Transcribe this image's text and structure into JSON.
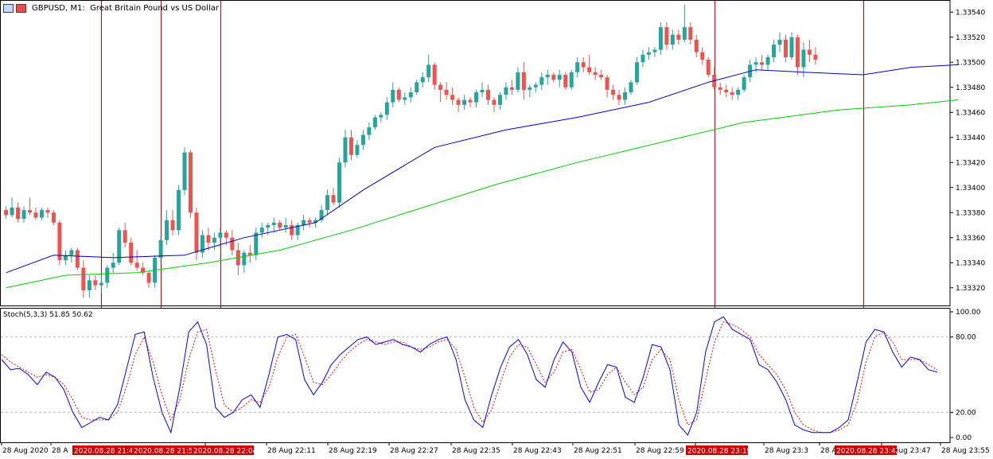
{
  "header": {
    "symbol": "GBPUSD, M1:",
    "description": "Great Britain Pound vs US Dollar",
    "icons": [
      "chart-window-icon",
      "chart-type-icon"
    ]
  },
  "stoch_label": "Stoch(5,3,3) 51.85 50.62",
  "colors": {
    "bull": "#26a69a",
    "bear": "#ef5350",
    "ma_fast": "#0000c8",
    "ma_slow": "#00d000",
    "stoch_main": "#0000ff",
    "stoch_signal": "#ff0000",
    "vline": "#d00000",
    "grid": "#bbbbbb"
  },
  "chart_data": {
    "type": "candlestick",
    "symbol": "GBPUSD",
    "timeframe": "M1",
    "price_axis": {
      "range": [
        1.333,
        1.3356
      ],
      "ticks": [
        "1.33540",
        "1.33520",
        "1.33500",
        "1.33480",
        "1.33460",
        "1.33440",
        "1.33420",
        "1.33400",
        "1.33380",
        "1.33360",
        "1.33340",
        "1.33320"
      ]
    },
    "time_labels": [
      "28 Aug 2020",
      "28 A",
      "28 Aug 22:03",
      "28 Aug 22:11",
      "28 Aug 22:19",
      "28 Aug 22:27",
      "28 Aug 22:35",
      "28 Aug 22:43",
      "28 Aug 22:51",
      "28 Aug 22:59",
      "28 Aug 23:07",
      "28 Aug 23:23",
      "28 Aug 23:3",
      "28 Aug 23:47",
      "28 Aug 23:55"
    ],
    "marker_labels": [
      "2020.08.28 21:4",
      "2020.08.28 21:5",
      "2020.08.28 22:04",
      "2020.08.28 23:19",
      "2020.08.28 23:42"
    ],
    "marker_candles": [
      16,
      26,
      36,
      119,
      144
    ],
    "candles": [
      [
        1.33382,
        1.33385,
        1.33375,
        1.33378
      ],
      [
        1.33378,
        1.33392,
        1.33376,
        1.33384
      ],
      [
        1.33384,
        1.33388,
        1.33372,
        1.33375
      ],
      [
        1.33375,
        1.33385,
        1.33372,
        1.33382
      ],
      [
        1.33382,
        1.33392,
        1.33378,
        1.3338
      ],
      [
        1.3338,
        1.33384,
        1.33374,
        1.33376
      ],
      [
        1.33376,
        1.33384,
        1.33374,
        1.33382
      ],
      [
        1.33382,
        1.33384,
        1.33376,
        1.3338
      ],
      [
        1.3338,
        1.33382,
        1.3337,
        1.33372
      ],
      [
        1.33372,
        1.33374,
        1.33338,
        1.33342
      ],
      [
        1.33342,
        1.3335,
        1.33338,
        1.33346
      ],
      [
        1.33346,
        1.33352,
        1.3334,
        1.3335
      ],
      [
        1.3335,
        1.33352,
        1.33334,
        1.33336
      ],
      [
        1.33336,
        1.33342,
        1.33312,
        1.33318
      ],
      [
        1.33318,
        1.3333,
        1.33312,
        1.33326
      ],
      [
        1.33326,
        1.3333,
        1.33318,
        1.33322
      ],
      [
        1.33322,
        1.3333,
        1.33316,
        1.33324
      ],
      [
        1.33324,
        1.33338,
        1.3332,
        1.33336
      ],
      [
        1.33336,
        1.33348,
        1.33332,
        1.3334
      ],
      [
        1.3334,
        1.33368,
        1.33338,
        1.33366
      ],
      [
        1.33366,
        1.33372,
        1.33352,
        1.33356
      ],
      [
        1.33356,
        1.3336,
        1.33338,
        1.3334
      ],
      [
        1.3334,
        1.3335,
        1.33334,
        1.33336
      ],
      [
        1.33336,
        1.3334,
        1.3333,
        1.33332
      ],
      [
        1.33332,
        1.33334,
        1.3332,
        1.33324
      ],
      [
        1.33324,
        1.33346,
        1.3332,
        1.33344
      ],
      [
        1.33344,
        1.3336,
        1.3334,
        1.33358
      ],
      [
        1.33358,
        1.33382,
        1.33354,
        1.33374
      ],
      [
        1.33374,
        1.33382,
        1.33362,
        1.33366
      ],
      [
        1.33366,
        1.33402,
        1.33362,
        1.33398
      ],
      [
        1.33398,
        1.33432,
        1.33394,
        1.33428
      ],
      [
        1.33428,
        1.3343,
        1.33376,
        1.3338
      ],
      [
        1.3338,
        1.33384,
        1.33342,
        1.33348
      ],
      [
        1.33348,
        1.33366,
        1.33344,
        1.33362
      ],
      [
        1.33362,
        1.33368,
        1.3335,
        1.33356
      ],
      [
        1.33356,
        1.33364,
        1.3335,
        1.3336
      ],
      [
        1.3336,
        1.33368,
        1.33352,
        1.33364
      ],
      [
        1.33364,
        1.33366,
        1.33354,
        1.3336
      ],
      [
        1.3336,
        1.33366,
        1.33346,
        1.3335
      ],
      [
        1.3335,
        1.33356,
        1.3333,
        1.33338
      ],
      [
        1.33338,
        1.3335,
        1.33332,
        1.33348
      ],
      [
        1.33348,
        1.33354,
        1.3334,
        1.33346
      ],
      [
        1.33346,
        1.33368,
        1.33342,
        1.33364
      ],
      [
        1.33364,
        1.33372,
        1.3336,
        1.33368
      ],
      [
        1.33368,
        1.33372,
        1.33362,
        1.3337
      ],
      [
        1.3337,
        1.33376,
        1.33364,
        1.33372
      ],
      [
        1.33372,
        1.33374,
        1.33366,
        1.33368
      ],
      [
        1.33368,
        1.33376,
        1.33364,
        1.3337
      ],
      [
        1.3337,
        1.33374,
        1.33358,
        1.33362
      ],
      [
        1.33362,
        1.33372,
        1.33358,
        1.3337
      ],
      [
        1.3337,
        1.33378,
        1.33366,
        1.33374
      ],
      [
        1.33374,
        1.33376,
        1.33368,
        1.33372
      ],
      [
        1.33372,
        1.33376,
        1.33368,
        1.33374
      ],
      [
        1.33374,
        1.33386,
        1.33372,
        1.33382
      ],
      [
        1.33382,
        1.33398,
        1.33378,
        1.33394
      ],
      [
        1.33394,
        1.334,
        1.33386,
        1.33388
      ],
      [
        1.33388,
        1.33424,
        1.33384,
        1.3342
      ],
      [
        1.3342,
        1.33446,
        1.33416,
        1.3344
      ],
      [
        1.3344,
        1.33446,
        1.33422,
        1.33426
      ],
      [
        1.33426,
        1.33438,
        1.33424,
        1.33434
      ],
      [
        1.33434,
        1.33446,
        1.3343,
        1.33442
      ],
      [
        1.33442,
        1.33452,
        1.33438,
        1.33448
      ],
      [
        1.33448,
        1.33458,
        1.33446,
        1.33456
      ],
      [
        1.33456,
        1.3346,
        1.33452,
        1.33458
      ],
      [
        1.33458,
        1.33472,
        1.33454,
        1.33468
      ],
      [
        1.33468,
        1.33484,
        1.33464,
        1.33478
      ],
      [
        1.33478,
        1.3348,
        1.33468,
        1.3347
      ],
      [
        1.3347,
        1.33476,
        1.33466,
        1.33472
      ],
      [
        1.33472,
        1.3348,
        1.33468,
        1.33476
      ],
      [
        1.33476,
        1.33486,
        1.33474,
        1.33484
      ],
      [
        1.33484,
        1.33492,
        1.3348,
        1.33488
      ],
      [
        1.33488,
        1.33506,
        1.33484,
        1.33498
      ],
      [
        1.33498,
        1.335,
        1.33478,
        1.33482
      ],
      [
        1.33482,
        1.33484,
        1.33468,
        1.33478
      ],
      [
        1.33478,
        1.33484,
        1.3347,
        1.33474
      ],
      [
        1.33474,
        1.3348,
        1.33466,
        1.3347
      ],
      [
        1.3347,
        1.33472,
        1.3346,
        1.33466
      ],
      [
        1.33466,
        1.33474,
        1.33462,
        1.3347
      ],
      [
        1.3347,
        1.33472,
        1.33464,
        1.33468
      ],
      [
        1.33468,
        1.33478,
        1.33464,
        1.33476
      ],
      [
        1.33476,
        1.33484,
        1.33472,
        1.33478
      ],
      [
        1.33478,
        1.33482,
        1.33466,
        1.3347
      ],
      [
        1.3347,
        1.33472,
        1.3346,
        1.33466
      ],
      [
        1.33466,
        1.33476,
        1.33462,
        1.33474
      ],
      [
        1.33474,
        1.33484,
        1.3347,
        1.3348
      ],
      [
        1.3348,
        1.33486,
        1.33474,
        1.33478
      ],
      [
        1.33478,
        1.33496,
        1.33476,
        1.33492
      ],
      [
        1.33492,
        1.335,
        1.3347,
        1.33478
      ],
      [
        1.33478,
        1.33482,
        1.33472,
        1.3348
      ],
      [
        1.3348,
        1.33484,
        1.33476,
        1.33482
      ],
      [
        1.33482,
        1.33492,
        1.33478,
        1.33488
      ],
      [
        1.33488,
        1.33494,
        1.33482,
        1.3349
      ],
      [
        1.3349,
        1.33492,
        1.33484,
        1.33486
      ],
      [
        1.33486,
        1.33494,
        1.3348,
        1.3349
      ],
      [
        1.3349,
        1.33492,
        1.33478,
        1.3348
      ],
      [
        1.3348,
        1.33494,
        1.33478,
        1.33492
      ],
      [
        1.33492,
        1.33504,
        1.33488,
        1.335
      ],
      [
        1.335,
        1.33504,
        1.33492,
        1.33496
      ],
      [
        1.33496,
        1.33506,
        1.3349,
        1.33492
      ],
      [
        1.33492,
        1.33496,
        1.33486,
        1.3349
      ],
      [
        1.3349,
        1.33494,
        1.33486,
        1.33488
      ],
      [
        1.33488,
        1.3349,
        1.33472,
        1.33478
      ],
      [
        1.33478,
        1.33482,
        1.3347,
        1.33474
      ],
      [
        1.33474,
        1.33478,
        1.33466,
        1.3347
      ],
      [
        1.3347,
        1.3348,
        1.33466,
        1.33476
      ],
      [
        1.33476,
        1.33486,
        1.33474,
        1.33484
      ],
      [
        1.33484,
        1.33504,
        1.33482,
        1.335
      ],
      [
        1.335,
        1.3351,
        1.33496,
        1.33506
      ],
      [
        1.33506,
        1.33512,
        1.33502,
        1.33508
      ],
      [
        1.33508,
        1.33512,
        1.33504,
        1.3351
      ],
      [
        1.3351,
        1.33532,
        1.33506,
        1.33528
      ],
      [
        1.33528,
        1.33532,
        1.3351,
        1.33514
      ],
      [
        1.33514,
        1.33526,
        1.3351,
        1.33522
      ],
      [
        1.33522,
        1.33526,
        1.33514,
        1.33518
      ],
      [
        1.33518,
        1.33546,
        1.33516,
        1.33528
      ],
      [
        1.33528,
        1.33532,
        1.33514,
        1.33518
      ],
      [
        1.33518,
        1.33522,
        1.33504,
        1.33508
      ],
      [
        1.33508,
        1.33512,
        1.33498,
        1.33502
      ],
      [
        1.33502,
        1.33504,
        1.33488,
        1.3349
      ],
      [
        1.3349,
        1.33496,
        1.33478,
        1.3348
      ],
      [
        1.3348,
        1.33484,
        1.33474,
        1.33478
      ],
      [
        1.33478,
        1.33482,
        1.33472,
        1.33476
      ],
      [
        1.33476,
        1.3348,
        1.3347,
        1.33474
      ],
      [
        1.33474,
        1.3348,
        1.3347,
        1.33478
      ],
      [
        1.33478,
        1.3349,
        1.33476,
        1.33488
      ],
      [
        1.33488,
        1.33502,
        1.33484,
        1.33498
      ],
      [
        1.33498,
        1.33504,
        1.33492,
        1.335
      ],
      [
        1.335,
        1.33506,
        1.33494,
        1.33498
      ],
      [
        1.33498,
        1.33506,
        1.33494,
        1.33504
      ],
      [
        1.33504,
        1.33518,
        1.335,
        1.33514
      ],
      [
        1.33514,
        1.33524,
        1.33508,
        1.33518
      ],
      [
        1.33518,
        1.33522,
        1.335,
        1.33504
      ],
      [
        1.33504,
        1.33524,
        1.33502,
        1.3352
      ],
      [
        1.3352,
        1.33522,
        1.3349,
        1.33496
      ],
      [
        1.33496,
        1.33516,
        1.33488,
        1.3351
      ],
      [
        1.3351,
        1.33518,
        1.335,
        1.33506
      ],
      [
        1.33506,
        1.33512,
        1.33498,
        1.33502
      ]
    ],
    "ma_fast": [
      [
        0,
        1.33332
      ],
      [
        8,
        1.33346
      ],
      [
        18,
        1.33344
      ],
      [
        30,
        1.33346
      ],
      [
        40,
        1.3336
      ],
      [
        52,
        1.33372
      ],
      [
        60,
        1.33398
      ],
      [
        72,
        1.33432
      ],
      [
        84,
        1.33446
      ],
      [
        96,
        1.33456
      ],
      [
        108,
        1.33468
      ],
      [
        118,
        1.33484
      ],
      [
        126,
        1.33494
      ],
      [
        134,
        1.33492
      ],
      [
        144,
        1.3349
      ],
      [
        152,
        1.33496
      ],
      [
        160,
        1.33498
      ]
    ],
    "ma_slow": [
      [
        0,
        1.3332
      ],
      [
        10,
        1.3333
      ],
      [
        22,
        1.33332
      ],
      [
        34,
        1.3334
      ],
      [
        46,
        1.3335
      ],
      [
        58,
        1.33366
      ],
      [
        70,
        1.33384
      ],
      [
        82,
        1.33402
      ],
      [
        96,
        1.3342
      ],
      [
        110,
        1.33436
      ],
      [
        124,
        1.33452
      ],
      [
        140,
        1.33462
      ],
      [
        152,
        1.33466
      ],
      [
        160,
        1.3347
      ]
    ],
    "stochastic": {
      "label": "Stoch(5,3,3) 51.85 50.62",
      "range": [
        0,
        100
      ],
      "levels": [
        20,
        80
      ],
      "ticks": [
        "100.00",
        "80.00",
        "20.00",
        "0.00"
      ],
      "main": [
        62,
        54,
        55,
        50,
        42,
        52,
        48,
        38,
        20,
        8,
        12,
        16,
        14,
        26,
        54,
        82,
        84,
        48,
        20,
        4,
        40,
        84,
        92,
        74,
        24,
        16,
        20,
        30,
        34,
        24,
        50,
        80,
        82,
        78,
        46,
        34,
        44,
        58,
        66,
        72,
        78,
        80,
        74,
        76,
        78,
        74,
        72,
        68,
        74,
        78,
        80,
        62,
        30,
        14,
        8,
        34,
        56,
        72,
        78,
        66,
        46,
        40,
        62,
        76,
        68,
        40,
        28,
        44,
        58,
        56,
        32,
        28,
        48,
        74,
        72,
        54,
        10,
        2,
        20,
        68,
        92,
        96,
        86,
        82,
        78,
        58,
        54,
        44,
        30,
        10,
        6,
        4,
        4,
        4,
        8,
        14,
        44,
        76,
        86,
        84,
        68,
        56,
        64,
        62,
        54,
        52
      ],
      "signal": [
        66,
        60,
        56,
        52,
        48,
        50,
        48,
        42,
        30,
        16,
        14,
        14,
        14,
        20,
        40,
        66,
        80,
        60,
        34,
        14,
        30,
        62,
        84,
        86,
        54,
        26,
        20,
        24,
        30,
        28,
        40,
        64,
        80,
        82,
        64,
        44,
        42,
        50,
        60,
        68,
        74,
        78,
        76,
        74,
        76,
        76,
        72,
        70,
        72,
        76,
        78,
        70,
        48,
        24,
        12,
        22,
        44,
        64,
        74,
        72,
        58,
        44,
        52,
        68,
        70,
        54,
        36,
        38,
        50,
        56,
        44,
        34,
        40,
        62,
        70,
        62,
        30,
        10,
        14,
        46,
        76,
        92,
        90,
        86,
        80,
        66,
        58,
        50,
        38,
        20,
        10,
        6,
        4,
        4,
        6,
        10,
        28,
        60,
        80,
        84,
        76,
        62,
        62,
        62,
        58,
        54
      ]
    }
  }
}
